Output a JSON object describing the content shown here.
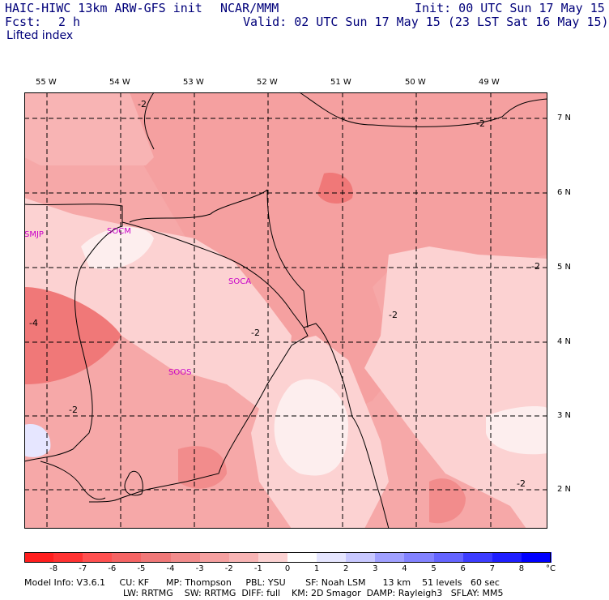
{
  "header": {
    "model": "HAIC-HIWC 13km ARW-GFS init",
    "org": "NCAR/MMM",
    "fcst_label": "Fcst:",
    "fcst_value": "2 h",
    "init": "Init: 00 UTC Sun 17 May 15",
    "valid": "Valid: 02 UTC Sun 17 May 15 (23 LST Sat 16 May 15)",
    "field": "Lifted index"
  },
  "lon_labels": [
    "55 W",
    "54 W",
    "53 W",
    "52 W",
    "51 W",
    "50 W",
    "49 W"
  ],
  "lat_labels": [
    "7 N",
    "6 N",
    "5 N",
    "4 N",
    "3 N",
    "2 N"
  ],
  "stations": [
    "SMJP",
    "SOCM",
    "SOCA",
    "SOOS"
  ],
  "contour_labels": [
    "-2",
    "-4"
  ],
  "colorbar": {
    "ticks": [
      "-8",
      "-7",
      "-6",
      "-5",
      "-4",
      "-3",
      "-2",
      "-1",
      "0",
      "1",
      "2",
      "3",
      "4",
      "5",
      "6",
      "7",
      "8"
    ],
    "unit": "°C",
    "colors": [
      "#ff1e1e",
      "#ff3232",
      "#ff5050",
      "#f56464",
      "#f07878",
      "#f28c8c",
      "#f5a0a0",
      "#f8b4b4",
      "#fcd2d2",
      "#ffffff",
      "#e6e6ff",
      "#c8c8ff",
      "#a0a0ff",
      "#8282ff",
      "#6464ff",
      "#3c3cff",
      "#1e1eff",
      "#0000ff"
    ]
  },
  "footer": {
    "line1": "Model Info: V3.6.1     CU: KF      MP: Thompson     PBL: YSU       SF: Noah LSM      13 km    51 levels   60 sec",
    "line2": "LW: RRTMG    SW: RRTMG  DIFF: full    KM: 2D Smagor  DAMP: Rayleigh3   SFLAY: MM5"
  }
}
